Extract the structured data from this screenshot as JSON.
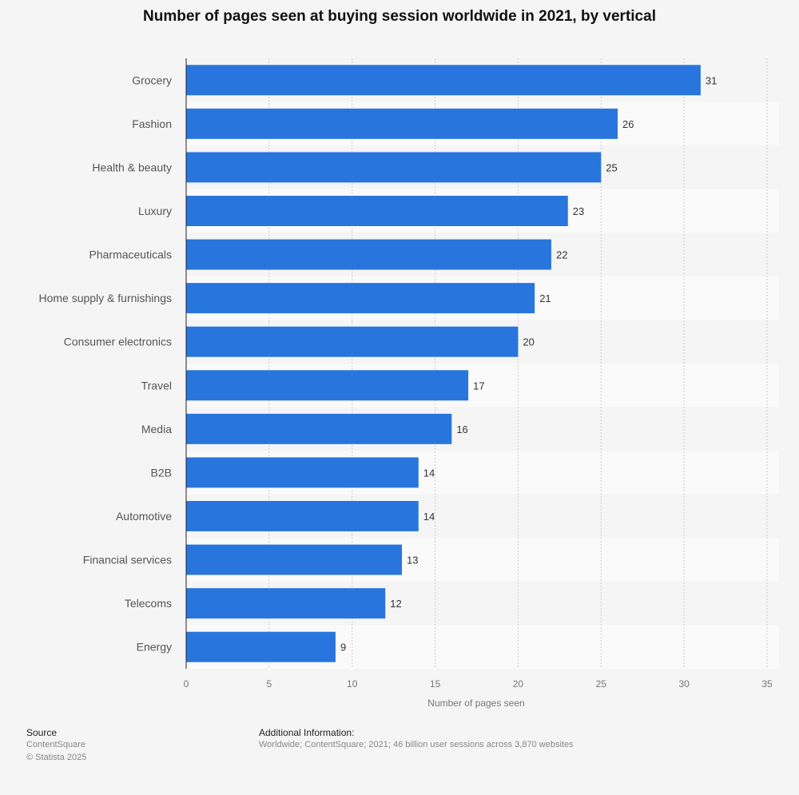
{
  "title": "Number of pages seen at buying session worldwide in 2021, by vertical",
  "chart_data": {
    "type": "bar",
    "orientation": "horizontal",
    "title": "Number of pages seen at buying session worldwide in 2021, by vertical",
    "categories": [
      "Grocery",
      "Fashion",
      "Health & beauty",
      "Luxury",
      "Pharmaceuticals",
      "Home supply & furnishings",
      "Consumer electronics",
      "Travel",
      "Media",
      "B2B",
      "Automotive",
      "Financial services",
      "Telecoms",
      "Energy"
    ],
    "values": [
      31,
      26,
      25,
      23,
      22,
      21,
      20,
      17,
      16,
      14,
      14,
      13,
      12,
      9
    ],
    "xlabel": "Number of pages seen",
    "ylabel": "",
    "xlim": [
      0,
      35
    ],
    "xticks": [
      0,
      5,
      10,
      15,
      20,
      25,
      30,
      35
    ],
    "grid": true,
    "bar_color": "#2876dd",
    "data_labels": true
  },
  "footer": {
    "source_heading": "Source",
    "source_name": "ContentSquare",
    "copyright": "© Statista 2025",
    "additional_heading": "Additional Information:",
    "additional_text": "Worldwide; ContentSquare; 2021; 46 billion user sessions across 3,870 websites"
  }
}
